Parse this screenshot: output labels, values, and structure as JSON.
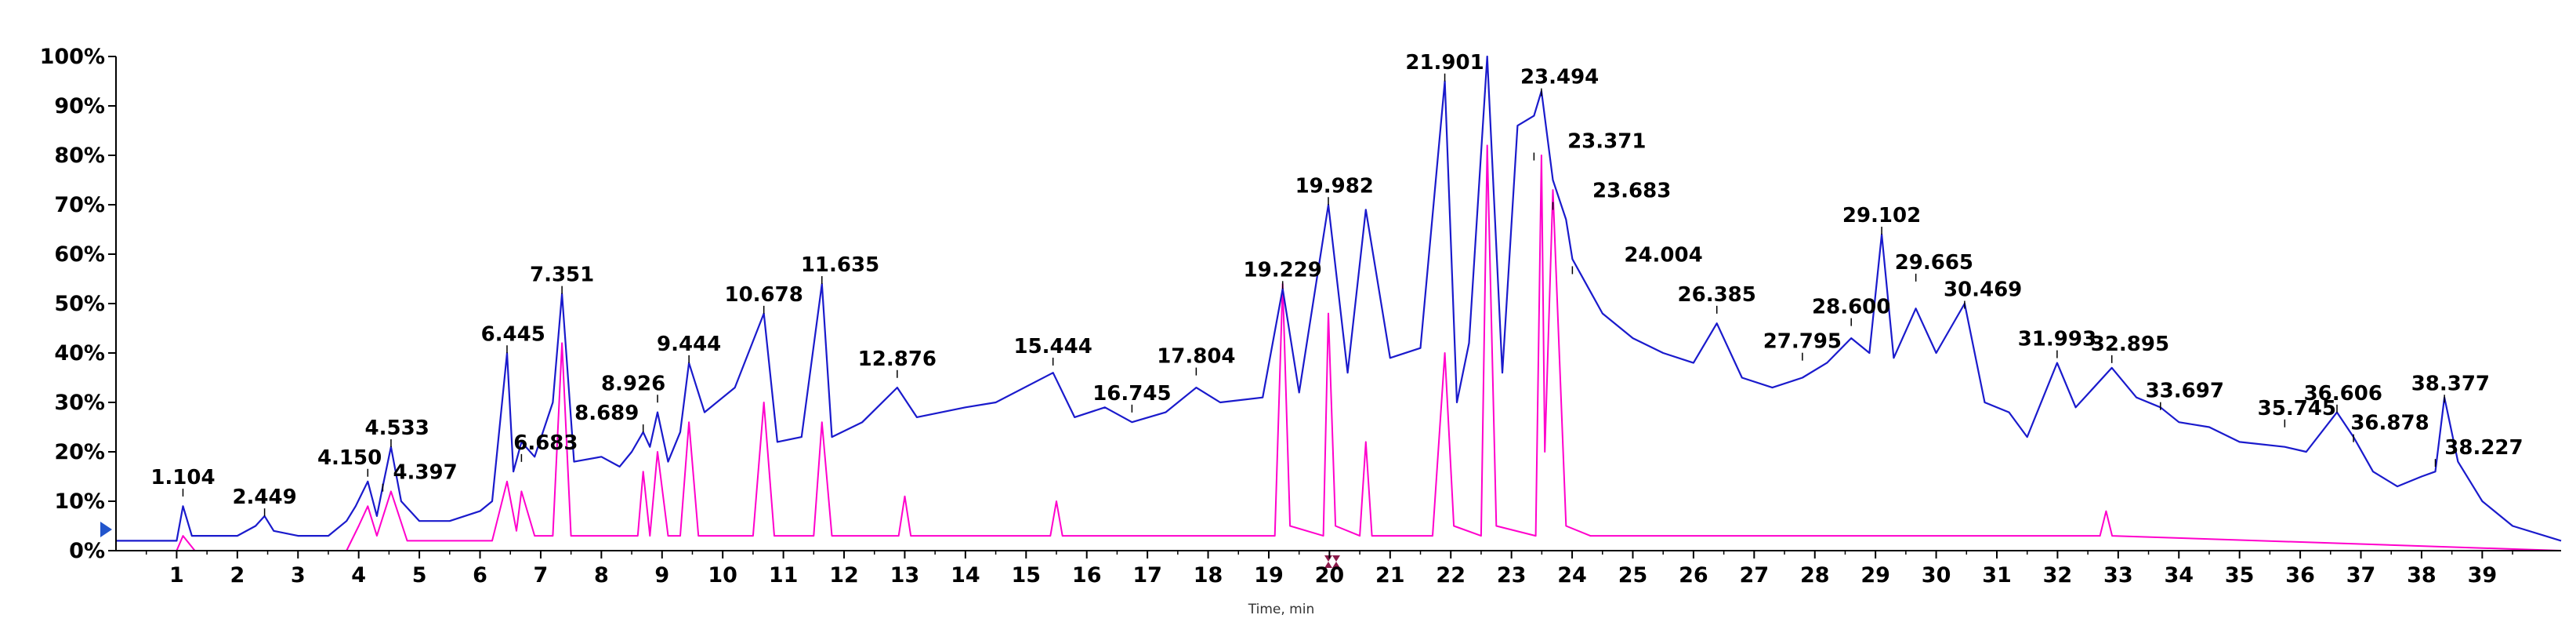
{
  "chart_data": {
    "type": "line",
    "title": "",
    "xlabel": "Time, min",
    "ylabel": "",
    "xlim": [
      0,
      40.3
    ],
    "ylim": [
      0,
      100
    ],
    "x_ticks": [
      "1",
      "2",
      "3",
      "4",
      "5",
      "6",
      "7",
      "8",
      "9",
      "10",
      "11",
      "12",
      "13",
      "14",
      "15",
      "16",
      "17",
      "18",
      "19",
      "20",
      "21",
      "22",
      "23",
      "24",
      "25",
      "26",
      "27",
      "28",
      "29",
      "30",
      "31",
      "32",
      "33",
      "34",
      "35",
      "36",
      "37",
      "38",
      "39"
    ],
    "y_ticks": [
      "0%",
      "10%",
      "20%",
      "30%",
      "40%",
      "50%",
      "60%",
      "70%",
      "80%",
      "90%",
      "100%"
    ],
    "grid": false,
    "colors": {
      "tic": "#1a1acc",
      "xic": "#ff00cc",
      "axis": "#000000",
      "marker": "#8b1a4a",
      "arrow": "#2255cc"
    },
    "series": [
      {
        "color": "#1a1acc",
        "x": [
          0,
          1.0,
          1.104,
          1.25,
          2.0,
          2.3,
          2.449,
          2.6,
          3.0,
          3.5,
          3.8,
          3.95,
          4.15,
          4.3,
          4.397,
          4.533,
          4.7,
          5.0,
          5.5,
          6.0,
          6.2,
          6.445,
          6.55,
          6.683,
          6.9,
          7.2,
          7.351,
          7.55,
          8.0,
          8.3,
          8.5,
          8.689,
          8.8,
          8.926,
          9.1,
          9.3,
          9.444,
          9.7,
          10.2,
          10.678,
          10.9,
          11.3,
          11.635,
          11.8,
          12.3,
          12.876,
          13.2,
          14.0,
          14.5,
          15.444,
          15.8,
          16.3,
          16.745,
          17.3,
          17.804,
          18.2,
          18.9,
          19.229,
          19.5,
          19.982,
          20.3,
          20.6,
          21.0,
          21.5,
          21.901,
          22.1,
          22.3,
          22.6,
          22.85,
          23.1,
          23.371,
          23.494,
          23.683,
          23.9,
          24.004,
          24.5,
          25.0,
          25.5,
          26.0,
          26.385,
          26.8,
          27.3,
          27.795,
          28.2,
          28.6,
          28.9,
          29.102,
          29.3,
          29.665,
          30.0,
          30.469,
          30.8,
          31.2,
          31.5,
          31.993,
          32.3,
          32.895,
          33.3,
          33.697,
          34.0,
          34.5,
          35.0,
          35.745,
          36.1,
          36.606,
          36.878,
          37.2,
          37.6,
          38.0,
          38.227,
          38.377,
          38.6,
          39.0,
          39.5,
          40.3
        ],
        "y": [
          2,
          2,
          9,
          3,
          3,
          5,
          7,
          4,
          3,
          3,
          6,
          9,
          14,
          7,
          13,
          21,
          10,
          6,
          6,
          8,
          10,
          40,
          16,
          22,
          19,
          30,
          52,
          18,
          19,
          17,
          20,
          24,
          21,
          28,
          18,
          24,
          38,
          28,
          33,
          48,
          22,
          23,
          54,
          23,
          26,
          33,
          27,
          29,
          30,
          36,
          27,
          29,
          26,
          28,
          33,
          30,
          31,
          53,
          32,
          70,
          36,
          69,
          39,
          41,
          95,
          30,
          42,
          100,
          36,
          86,
          88,
          93,
          75,
          67,
          59,
          48,
          43,
          40,
          38,
          46,
          35,
          33,
          35,
          38,
          43,
          40,
          64,
          39,
          49,
          40,
          50,
          30,
          28,
          23,
          38,
          29,
          37,
          31,
          29,
          26,
          25,
          22,
          21,
          20,
          28,
          23,
          16,
          13,
          15,
          16,
          31,
          18,
          10,
          5,
          2
        ]
      },
      {
        "color": "#ff00cc",
        "x": [
          0,
          1.0,
          1.104,
          1.3,
          3.8,
          4.0,
          4.15,
          4.3,
          4.533,
          4.8,
          6.2,
          6.445,
          6.6,
          6.683,
          6.9,
          7.2,
          7.351,
          7.5,
          8.6,
          8.689,
          8.8,
          8.926,
          9.1,
          9.3,
          9.444,
          9.6,
          10.5,
          10.678,
          10.85,
          11.5,
          11.635,
          11.8,
          12.9,
          13.0,
          13.1,
          15.4,
          15.5,
          15.6,
          19.1,
          19.229,
          19.35,
          19.9,
          19.982,
          20.1,
          20.5,
          20.6,
          20.7,
          21.7,
          21.901,
          22.05,
          22.5,
          22.6,
          22.75,
          23.4,
          23.494,
          23.55,
          23.683,
          23.9,
          24.3,
          32.7,
          32.8,
          32.9,
          40.3
        ],
        "y": [
          0,
          0,
          3,
          0,
          0,
          5,
          9,
          3,
          12,
          2,
          2,
          14,
          4,
          12,
          3,
          3,
          42,
          3,
          3,
          16,
          3,
          20,
          3,
          3,
          26,
          3,
          3,
          30,
          3,
          3,
          26,
          3,
          3,
          11,
          3,
          3,
          10,
          3,
          3,
          54,
          5,
          3,
          48,
          5,
          3,
          22,
          3,
          3,
          40,
          5,
          3,
          82,
          5,
          3,
          80,
          20,
          73,
          5,
          3,
          3,
          8,
          3,
          0
        ]
      }
    ],
    "annotations": [
      {
        "text": "1.104",
        "x": 1.104
      },
      {
        "text": "2.449",
        "x": 2.449
      },
      {
        "text": "4.150",
        "x": 4.15
      },
      {
        "text": "4.533",
        "x": 4.533
      },
      {
        "text": "4.397",
        "x": 4.397
      },
      {
        "text": "6.445",
        "x": 6.445
      },
      {
        "text": "6.683",
        "x": 6.683
      },
      {
        "text": "7.351",
        "x": 7.351
      },
      {
        "text": "8.926",
        "x": 8.926
      },
      {
        "text": "8.689",
        "x": 8.689
      },
      {
        "text": "9.444",
        "x": 9.444
      },
      {
        "text": "10.678",
        "x": 10.678
      },
      {
        "text": "11.635",
        "x": 11.635
      },
      {
        "text": "12.876",
        "x": 12.876
      },
      {
        "text": "15.444",
        "x": 15.444
      },
      {
        "text": "16.745",
        "x": 16.745
      },
      {
        "text": "17.804",
        "x": 17.804
      },
      {
        "text": "19.229",
        "x": 19.229
      },
      {
        "text": "19.982",
        "x": 19.982
      },
      {
        "text": "21.901",
        "x": 21.901
      },
      {
        "text": "23.494",
        "x": 23.494
      },
      {
        "text": "23.371",
        "x": 23.371
      },
      {
        "text": "23.683",
        "x": 23.683
      },
      {
        "text": "24.004",
        "x": 24.004
      },
      {
        "text": "26.385",
        "x": 26.385
      },
      {
        "text": "28.600",
        "x": 28.6
      },
      {
        "text": "27.795",
        "x": 27.795
      },
      {
        "text": "29.102",
        "x": 29.102
      },
      {
        "text": "29.665",
        "x": 29.665
      },
      {
        "text": "30.469",
        "x": 30.469
      },
      {
        "text": "31.993",
        "x": 31.993
      },
      {
        "text": "32.895",
        "x": 32.895
      },
      {
        "text": "33.697",
        "x": 33.697
      },
      {
        "text": "35.745",
        "x": 35.745
      },
      {
        "text": "36.606",
        "x": 36.606
      },
      {
        "text": "36.878",
        "x": 36.878
      },
      {
        "text": "38.377",
        "x": 38.377
      },
      {
        "text": "38.227",
        "x": 38.227
      }
    ]
  }
}
